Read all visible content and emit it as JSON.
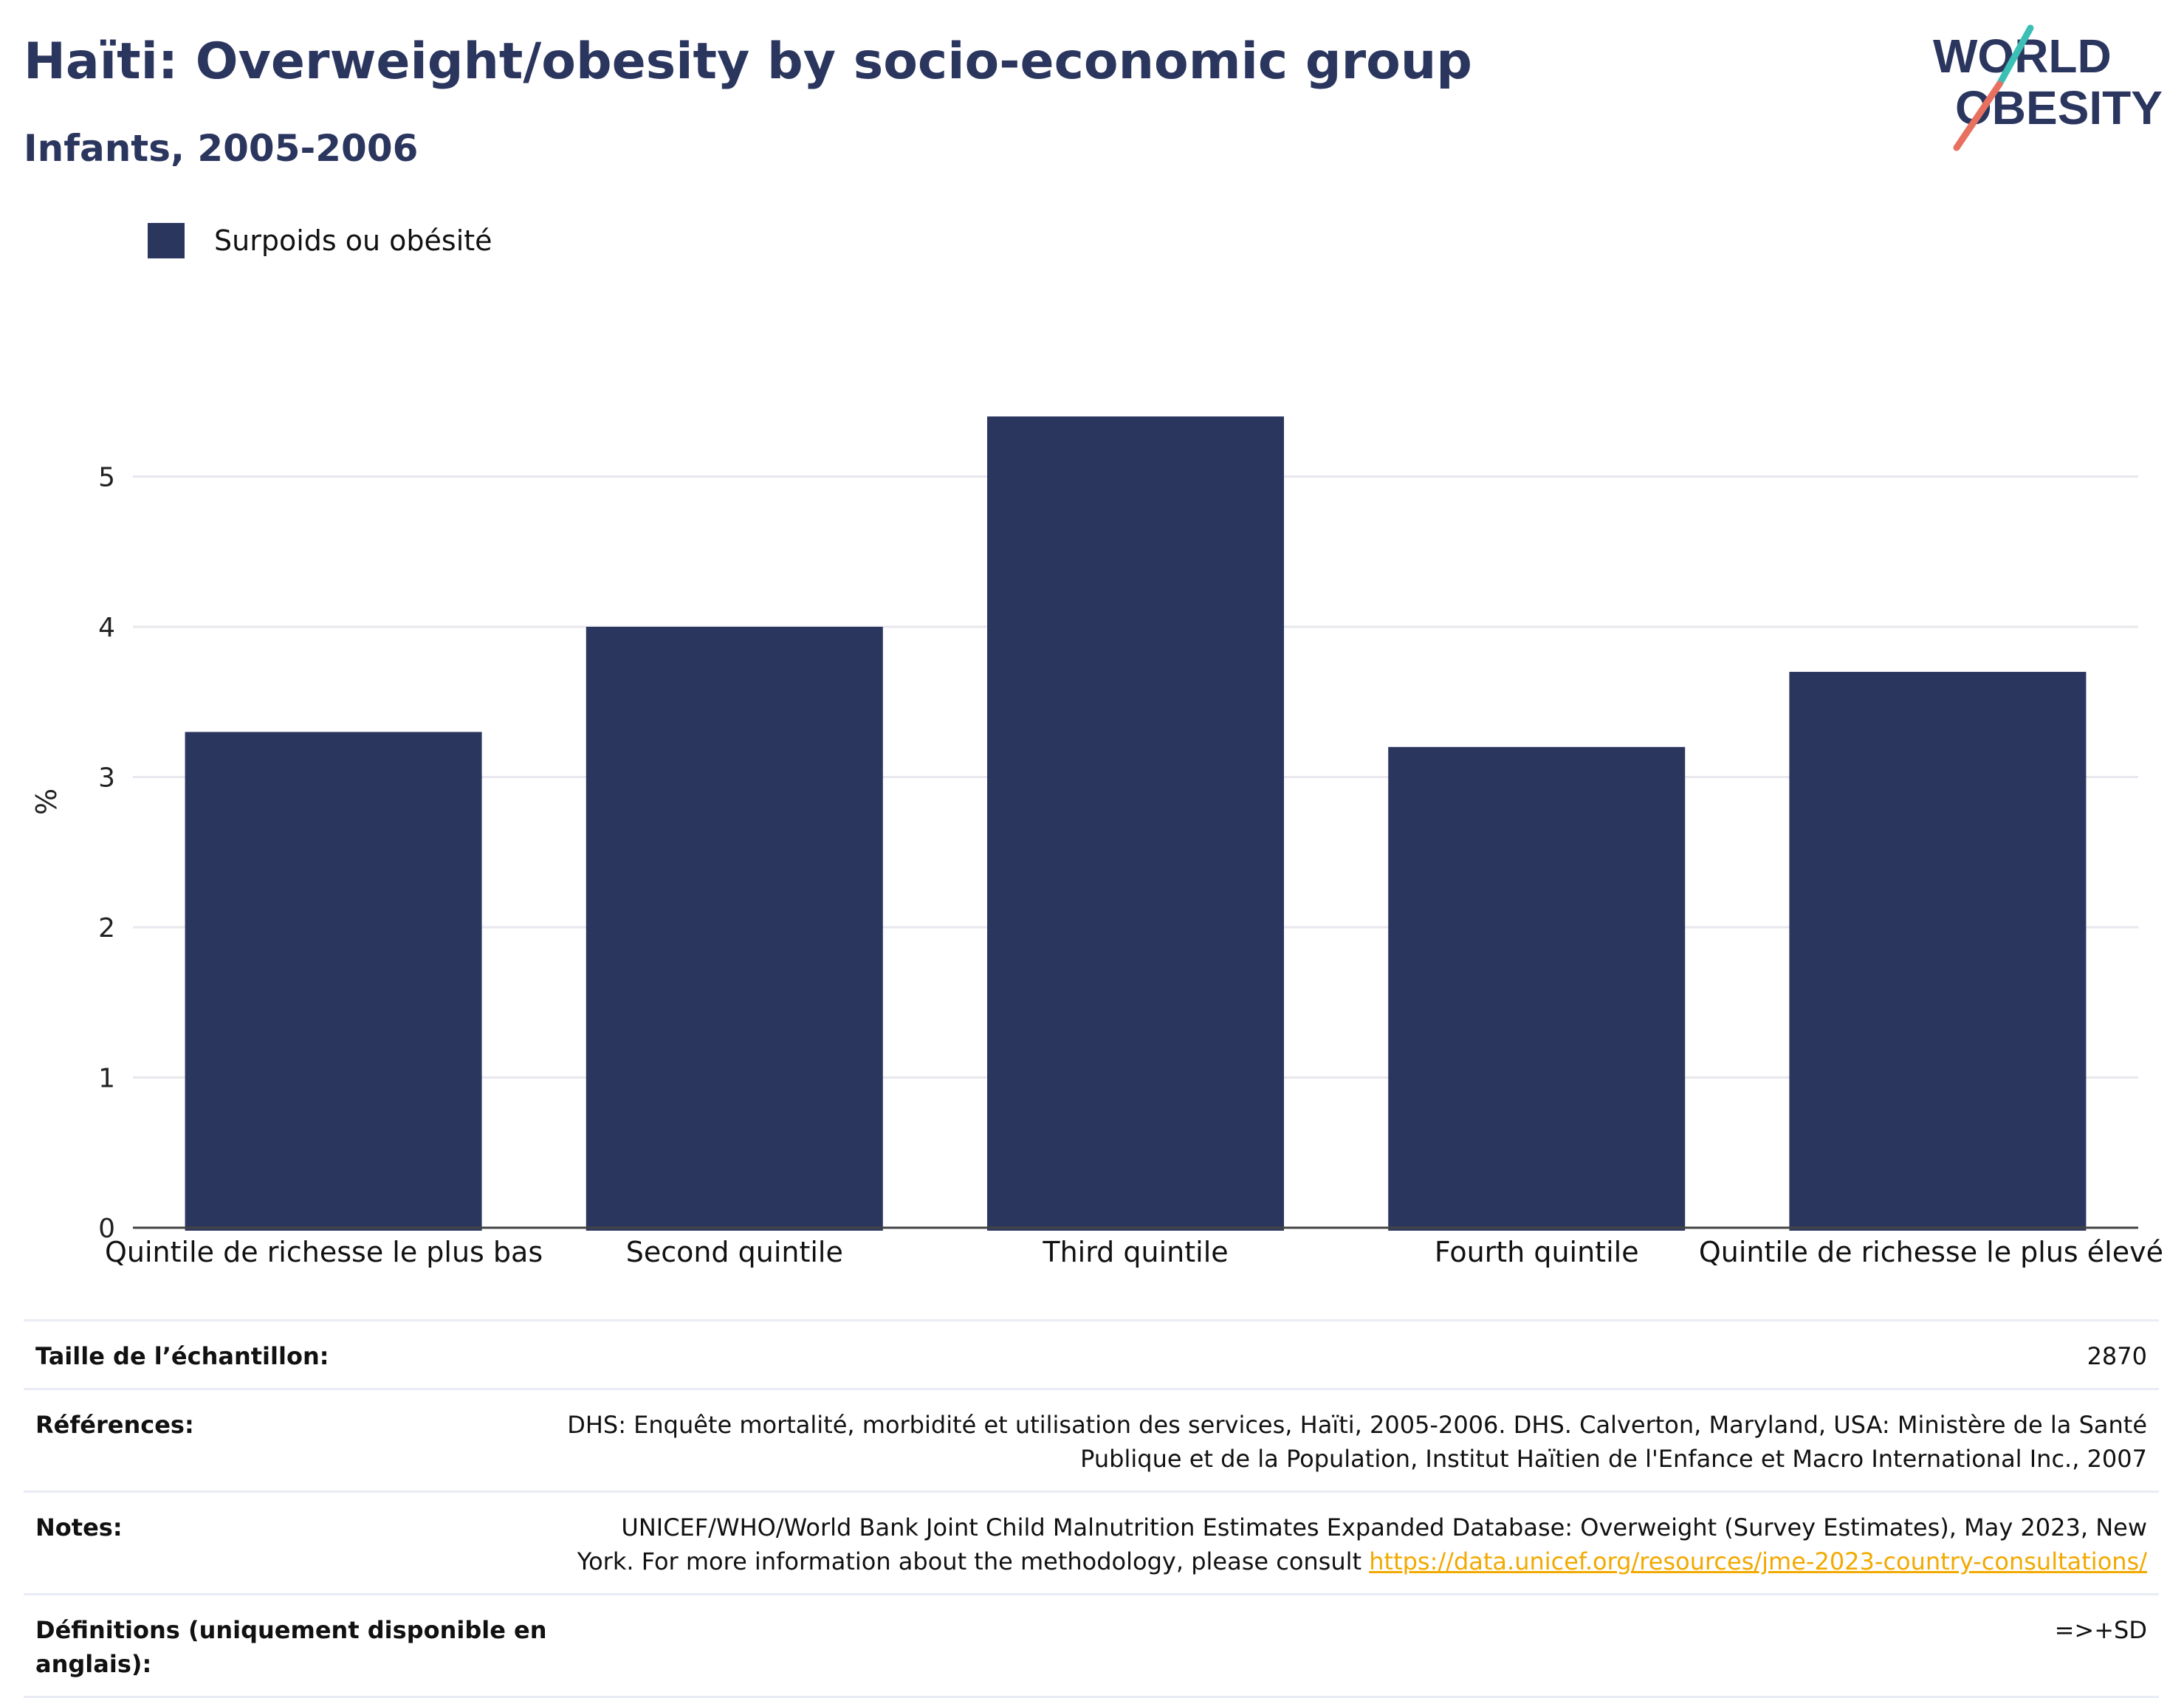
{
  "header": {
    "title": "Haïti: Overweight/obesity by socio-economic group",
    "subtitle": "Infants, 2005-2006"
  },
  "logo": {
    "line1": "WORLD",
    "line2": "OBESITY"
  },
  "colors": {
    "bar": "#2b365f",
    "title": "#2b365f",
    "link": "#f2a900",
    "logo_teal": "#3cbfb4",
    "logo_coral": "#e8705f"
  },
  "legend": {
    "label": "Surpoids ou obésité"
  },
  "chart_data": {
    "type": "bar",
    "categories": [
      "Quintile de richesse le plus bas",
      "Second quintile",
      "Third quintile",
      "Fourth quintile",
      "Quintile de richesse le plus élevé"
    ],
    "series": [
      {
        "name": "Surpoids ou obésité",
        "values": [
          3.3,
          4.0,
          5.4,
          3.2,
          3.7
        ]
      }
    ],
    "ylabel": "%",
    "ylim": [
      0,
      5.5
    ],
    "yticks": [
      0,
      1,
      2,
      3,
      4,
      5
    ],
    "grid": true,
    "legend_position": "top-left"
  },
  "meta": {
    "sample_label": "Taille de l’échantillon:",
    "sample_value": "2870",
    "references_label": "Références:",
    "references_value": "DHS: Enquête mortalité, morbidité et utilisation des services, Haïti, 2005-2006. DHS. Calverton, Maryland, USA: Ministère de la Santé Publique et de la Population, Institut Haïtien de l'Enfance et Macro International Inc., 2007",
    "notes_label": "Notes:",
    "notes_text": "UNICEF/WHO/World Bank Joint Child Malnutrition Estimates Expanded Database: Overweight (Survey Estimates), May 2023, New York. For more information about the methodology, please consult ",
    "notes_link": "https://data.unicef.org/resources/jme-2023-country-consultations/",
    "definitions_label": "Définitions (uniquement disponible en anglais):",
    "definitions_value": "=>+SD"
  }
}
